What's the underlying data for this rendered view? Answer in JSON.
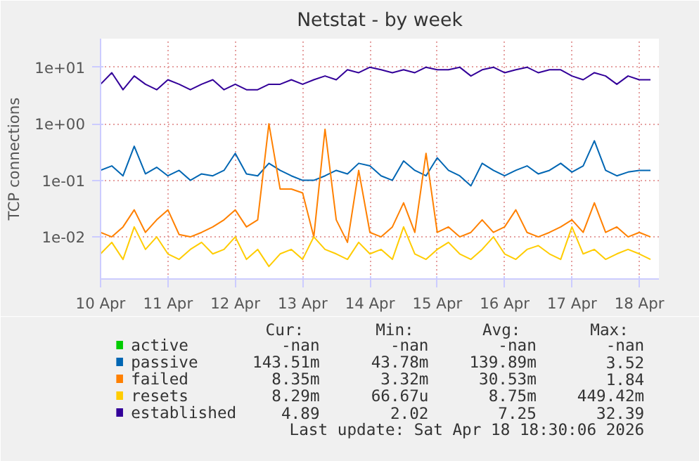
{
  "chart_data": {
    "type": "line",
    "title": "Netstat - by week",
    "ylabel": "TCP connections",
    "log": "y",
    "grid": true,
    "legend": "bottom",
    "ylim": [
      0.0018,
      32
    ],
    "yticks": [
      {
        "value": 0.01,
        "label": "1e-02"
      },
      {
        "value": 0.1,
        "label": "1e-01"
      },
      {
        "value": 1,
        "label": "1e+00"
      },
      {
        "value": 10,
        "label": "1e+01"
      }
    ],
    "xlim": [
      "2026-04-10T00:00",
      "2026-04-18T07:00"
    ],
    "xticks": [
      {
        "value": "2026-04-10",
        "label": "10 Apr"
      },
      {
        "value": "2026-04-11",
        "label": "11 Apr"
      },
      {
        "value": "2026-04-12",
        "label": "12 Apr"
      },
      {
        "value": "2026-04-13",
        "label": "13 Apr"
      },
      {
        "value": "2026-04-14",
        "label": "14 Apr"
      },
      {
        "value": "2026-04-15",
        "label": "15 Apr"
      },
      {
        "value": "2026-04-16",
        "label": "16 Apr"
      },
      {
        "value": "2026-04-17",
        "label": "17 Apr"
      },
      {
        "value": "2026-04-18",
        "label": "18 Apr"
      }
    ],
    "x": [
      "2026-04-10T00:00",
      "2026-04-10T04:00",
      "2026-04-10T08:00",
      "2026-04-10T12:00",
      "2026-04-10T16:00",
      "2026-04-10T20:00",
      "2026-04-11T00:00",
      "2026-04-11T04:00",
      "2026-04-11T08:00",
      "2026-04-11T12:00",
      "2026-04-11T16:00",
      "2026-04-11T20:00",
      "2026-04-12T00:00",
      "2026-04-12T04:00",
      "2026-04-12T08:00",
      "2026-04-12T12:00",
      "2026-04-12T16:00",
      "2026-04-12T20:00",
      "2026-04-13T00:00",
      "2026-04-13T04:00",
      "2026-04-13T08:00",
      "2026-04-13T12:00",
      "2026-04-13T16:00",
      "2026-04-13T20:00",
      "2026-04-14T00:00",
      "2026-04-14T04:00",
      "2026-04-14T08:00",
      "2026-04-14T12:00",
      "2026-04-14T16:00",
      "2026-04-14T20:00",
      "2026-04-15T00:00",
      "2026-04-15T04:00",
      "2026-04-15T08:00",
      "2026-04-15T12:00",
      "2026-04-15T16:00",
      "2026-04-15T20:00",
      "2026-04-16T00:00",
      "2026-04-16T04:00",
      "2026-04-16T08:00",
      "2026-04-16T12:00",
      "2026-04-16T16:00",
      "2026-04-16T20:00",
      "2026-04-17T00:00",
      "2026-04-17T04:00",
      "2026-04-17T08:00",
      "2026-04-17T12:00",
      "2026-04-17T16:00",
      "2026-04-17T20:00",
      "2026-04-18T00:00",
      "2026-04-18T04:00"
    ],
    "series": [
      {
        "name": "active",
        "color": "#00cc00",
        "values": [
          null,
          null,
          null,
          null,
          null,
          null,
          null,
          null,
          null,
          null,
          null,
          null,
          null,
          null,
          null,
          null,
          null,
          null,
          null,
          null,
          null,
          null,
          null,
          null,
          null,
          null,
          null,
          null,
          null,
          null,
          null,
          null,
          null,
          null,
          null,
          null,
          null,
          null,
          null,
          null,
          null,
          null,
          null,
          null,
          null,
          null,
          null,
          null,
          null,
          null
        ]
      },
      {
        "name": "passive",
        "color": "#0066b3",
        "values": [
          0.15,
          0.18,
          0.12,
          0.4,
          0.13,
          0.17,
          0.12,
          0.15,
          0.1,
          0.13,
          0.12,
          0.15,
          0.3,
          0.13,
          0.12,
          0.2,
          0.15,
          0.12,
          0.1,
          0.1,
          0.12,
          0.15,
          0.13,
          0.2,
          0.18,
          0.12,
          0.1,
          0.22,
          0.15,
          0.12,
          0.25,
          0.15,
          0.12,
          0.08,
          0.2,
          0.15,
          0.12,
          0.15,
          0.18,
          0.13,
          0.15,
          0.2,
          0.14,
          0.18,
          0.5,
          0.15,
          0.12,
          0.14,
          0.15,
          0.15
        ]
      },
      {
        "name": "failed",
        "color": "#ff8000",
        "values": [
          0.012,
          0.01,
          0.015,
          0.03,
          0.012,
          0.02,
          0.03,
          0.011,
          0.01,
          0.012,
          0.015,
          0.02,
          0.03,
          0.015,
          0.02,
          1.0,
          0.07,
          0.07,
          0.06,
          0.01,
          0.8,
          0.02,
          0.008,
          0.15,
          0.012,
          0.01,
          0.015,
          0.04,
          0.012,
          0.3,
          0.012,
          0.015,
          0.01,
          0.012,
          0.02,
          0.012,
          0.015,
          0.03,
          0.012,
          0.01,
          0.012,
          0.015,
          0.02,
          0.012,
          0.04,
          0.012,
          0.015,
          0.01,
          0.012,
          0.01
        ]
      },
      {
        "name": "resets",
        "color": "#ffcc00",
        "values": [
          0.005,
          0.008,
          0.004,
          0.015,
          0.006,
          0.01,
          0.005,
          0.004,
          0.006,
          0.008,
          0.005,
          0.006,
          0.01,
          0.004,
          0.006,
          0.003,
          0.005,
          0.006,
          0.004,
          0.01,
          0.006,
          0.005,
          0.004,
          0.008,
          0.005,
          0.006,
          0.004,
          0.015,
          0.005,
          0.004,
          0.006,
          0.008,
          0.005,
          0.004,
          0.006,
          0.01,
          0.005,
          0.004,
          0.006,
          0.007,
          0.005,
          0.004,
          0.015,
          0.005,
          0.006,
          0.004,
          0.005,
          0.006,
          0.005,
          0.004
        ]
      },
      {
        "name": "established",
        "color": "#330099",
        "values": [
          5,
          8,
          4,
          7,
          5,
          4,
          6,
          5,
          4,
          5,
          6,
          4,
          5,
          4,
          4,
          5,
          5,
          6,
          5,
          6,
          7,
          6,
          9,
          8,
          10,
          9,
          8,
          9,
          8,
          10,
          9,
          9,
          10,
          7,
          9,
          10,
          8,
          9,
          10,
          8,
          9,
          9,
          7,
          6,
          8,
          7,
          5,
          7,
          6,
          6
        ]
      }
    ],
    "annotations": [
      "Cur:",
      "Min:",
      "Avg:",
      "Max:",
      "-nan",
      "-nan",
      "-nan",
      "-nan",
      "143.51m",
      "43.78m",
      "139.89m",
      "3.52",
      "8.35m",
      "3.32m",
      "30.53m",
      "1.84",
      "8.29m",
      "66.67u",
      "8.75m",
      "449.42m",
      "4.89",
      "2.02",
      "7.25",
      "32.39",
      "Last update: Sat Apr 18 18:30:06 2026"
    ]
  }
}
